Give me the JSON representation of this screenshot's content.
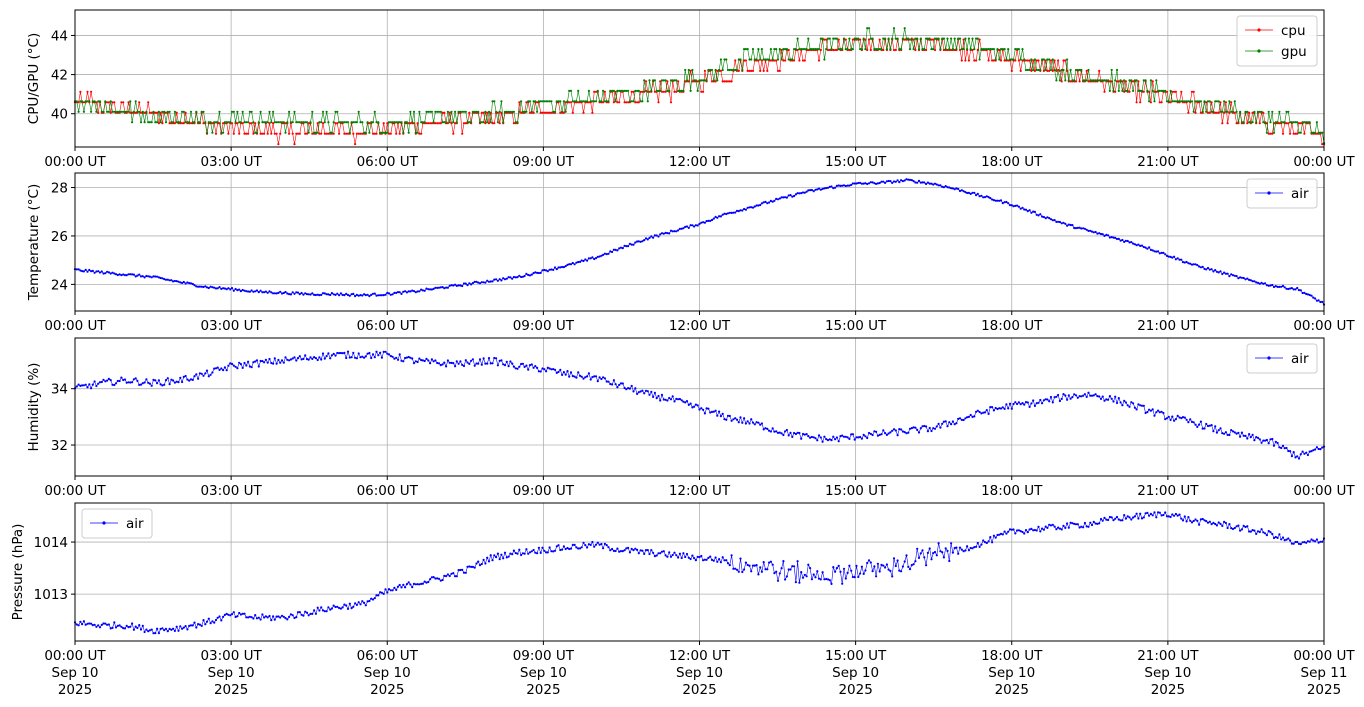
{
  "chart_data": [
    {
      "type": "line",
      "ylabel": "CPU/GPU (°C)",
      "xlim": [
        "00:00",
        "24:00"
      ],
      "ylim": [
        38.3,
        45.3
      ],
      "yticks": [
        40,
        42,
        44
      ],
      "legend": "top-right",
      "grid": true,
      "x_tick_labels": [
        "00:00 UT",
        "03:00 UT",
        "06:00 UT",
        "09:00 UT",
        "12:00 UT",
        "15:00 UT",
        "18:00 UT",
        "21:00 UT",
        "00:00 UT"
      ],
      "series": [
        {
          "name": "cpu",
          "color": "#ff0000",
          "marker": "dot",
          "x_hours": [
            0,
            0.5,
            1.0,
            1.5,
            2.0,
            2.5,
            3.0,
            3.5,
            4.0,
            4.5,
            5.0,
            5.5,
            6.0,
            6.5,
            7.0,
            7.5,
            8.0,
            8.5,
            9.0,
            9.5,
            10.0,
            10.5,
            11.0,
            11.5,
            12.0,
            12.5,
            13.0,
            13.5,
            14.0,
            14.5,
            15.0,
            15.5,
            16.0,
            16.5,
            17.0,
            17.5,
            18.0,
            18.5,
            19.0,
            19.5,
            20.0,
            20.5,
            21.0,
            21.5,
            22.0,
            22.5,
            23.0,
            23.5,
            24.0
          ],
          "values": [
            40.7,
            40.5,
            40.2,
            40.0,
            39.8,
            39.5,
            39.2,
            39.1,
            39.1,
            39.1,
            39.2,
            39.1,
            39.3,
            39.5,
            39.6,
            39.6,
            39.7,
            40.0,
            40.2,
            40.4,
            40.6,
            40.8,
            41.0,
            41.3,
            41.7,
            42.1,
            42.6,
            42.8,
            43.1,
            43.4,
            43.5,
            43.6,
            43.6,
            43.5,
            43.4,
            43.1,
            42.8,
            42.5,
            42.1,
            41.8,
            41.5,
            41.1,
            40.8,
            40.5,
            40.2,
            39.8,
            39.5,
            39.2,
            38.7
          ]
        },
        {
          "name": "gpu",
          "color": "#008000",
          "marker": "dot",
          "x_hours": [
            0,
            0.5,
            1.0,
            1.5,
            2.0,
            2.5,
            3.0,
            3.5,
            4.0,
            4.5,
            5.0,
            5.5,
            6.0,
            6.5,
            7.0,
            7.5,
            8.0,
            8.5,
            9.0,
            9.5,
            10.0,
            10.5,
            11.0,
            11.5,
            12.0,
            12.5,
            13.0,
            13.5,
            14.0,
            14.5,
            15.0,
            15.5,
            16.0,
            16.5,
            17.0,
            17.5,
            18.0,
            18.5,
            19.0,
            19.5,
            20.0,
            20.5,
            21.0,
            21.5,
            22.0,
            22.5,
            23.0,
            23.5,
            24.0
          ],
          "values": [
            40.7,
            40.4,
            40.1,
            39.8,
            39.7,
            39.6,
            39.7,
            39.6,
            39.6,
            39.5,
            39.5,
            39.5,
            39.5,
            39.6,
            39.7,
            39.8,
            39.9,
            40.1,
            40.4,
            40.6,
            40.7,
            40.9,
            41.1,
            41.5,
            41.8,
            42.3,
            42.8,
            42.9,
            43.2,
            43.4,
            43.6,
            43.7,
            43.7,
            43.6,
            43.5,
            43.2,
            42.9,
            42.6,
            42.2,
            41.9,
            41.6,
            41.2,
            40.8,
            40.6,
            40.3,
            39.9,
            39.6,
            39.4,
            38.8
          ]
        }
      ]
    },
    {
      "type": "line",
      "ylabel": "Temperature (°C)",
      "xlim": [
        "00:00",
        "24:00"
      ],
      "ylim": [
        22.9,
        28.6
      ],
      "yticks": [
        24,
        26,
        28
      ],
      "legend": "top-right",
      "grid": true,
      "x_tick_labels": [
        "00:00 UT",
        "03:00 UT",
        "06:00 UT",
        "09:00 UT",
        "12:00 UT",
        "15:00 UT",
        "18:00 UT",
        "21:00 UT",
        "00:00 UT"
      ],
      "series": [
        {
          "name": "air",
          "color": "#0000ff",
          "marker": "dot",
          "x_hours": [
            0,
            0.5,
            1.0,
            1.5,
            2.0,
            2.5,
            3.0,
            3.5,
            4.0,
            4.5,
            5.0,
            5.5,
            6.0,
            6.5,
            7.0,
            7.5,
            8.0,
            8.5,
            9.0,
            9.5,
            10.0,
            10.5,
            11.0,
            11.5,
            12.0,
            12.5,
            13.0,
            13.5,
            14.0,
            14.5,
            15.0,
            15.5,
            16.0,
            16.5,
            17.0,
            17.5,
            18.0,
            18.5,
            19.0,
            19.5,
            20.0,
            20.5,
            21.0,
            21.5,
            22.0,
            22.5,
            23.0,
            23.5,
            24.0
          ],
          "values": [
            24.6,
            24.5,
            24.4,
            24.3,
            24.1,
            23.9,
            23.8,
            23.7,
            23.65,
            23.6,
            23.6,
            23.55,
            23.6,
            23.7,
            23.85,
            24.0,
            24.15,
            24.3,
            24.55,
            24.8,
            25.1,
            25.5,
            25.9,
            26.2,
            26.5,
            26.9,
            27.2,
            27.5,
            27.8,
            28.0,
            28.15,
            28.2,
            28.3,
            28.15,
            27.9,
            27.6,
            27.3,
            26.9,
            26.5,
            26.2,
            25.9,
            25.6,
            25.2,
            24.8,
            24.5,
            24.2,
            23.95,
            23.8,
            23.2
          ]
        }
      ]
    },
    {
      "type": "line",
      "ylabel": "Humidity (%)",
      "xlim": [
        "00:00",
        "24:00"
      ],
      "ylim": [
        30.9,
        35.8
      ],
      "yticks": [
        32,
        34
      ],
      "legend": "top-right",
      "grid": true,
      "x_tick_labels": [
        "00:00 UT",
        "03:00 UT",
        "06:00 UT",
        "09:00 UT",
        "12:00 UT",
        "15:00 UT",
        "18:00 UT",
        "21:00 UT",
        "00:00 UT"
      ],
      "series": [
        {
          "name": "air",
          "color": "#0000ff",
          "marker": "dot",
          "x_hours": [
            0,
            0.5,
            1.0,
            1.5,
            2.0,
            2.5,
            3.0,
            3.5,
            4.0,
            4.5,
            5.0,
            5.5,
            6.0,
            6.5,
            7.0,
            7.5,
            8.0,
            8.5,
            9.0,
            9.5,
            10.0,
            10.5,
            11.0,
            11.5,
            12.0,
            12.5,
            13.0,
            13.5,
            14.0,
            14.5,
            15.0,
            15.5,
            16.0,
            16.5,
            17.0,
            17.5,
            18.0,
            18.5,
            19.0,
            19.5,
            20.0,
            20.5,
            21.0,
            21.5,
            22.0,
            22.5,
            23.0,
            23.5,
            24.0
          ],
          "values": [
            34.0,
            34.2,
            34.3,
            34.2,
            34.3,
            34.5,
            34.8,
            34.9,
            35.0,
            35.1,
            35.2,
            35.2,
            35.2,
            35.0,
            34.9,
            34.9,
            35.0,
            34.8,
            34.7,
            34.5,
            34.4,
            34.1,
            33.8,
            33.6,
            33.3,
            33.0,
            32.8,
            32.5,
            32.3,
            32.2,
            32.3,
            32.4,
            32.5,
            32.6,
            32.9,
            33.2,
            33.4,
            33.5,
            33.7,
            33.8,
            33.6,
            33.3,
            33.0,
            32.8,
            32.5,
            32.3,
            32.1,
            31.6,
            31.9
          ]
        }
      ]
    },
    {
      "type": "line",
      "ylabel": "Pressure (hPa)",
      "xlim": [
        "2025-09-10 00:00",
        "2025-09-11 00:00"
      ],
      "ylim": [
        1012.1,
        1014.75
      ],
      "yticks": [
        1013,
        1014
      ],
      "legend": "top-left",
      "grid": true,
      "x_tick_labels": [
        [
          "00:00 UT",
          "Sep 10",
          "2025"
        ],
        [
          "03:00 UT",
          "Sep 10",
          "2025"
        ],
        [
          "06:00 UT",
          "Sep 10",
          "2025"
        ],
        [
          "09:00 UT",
          "Sep 10",
          "2025"
        ],
        [
          "12:00 UT",
          "Sep 10",
          "2025"
        ],
        [
          "15:00 UT",
          "Sep 10",
          "2025"
        ],
        [
          "18:00 UT",
          "Sep 10",
          "2025"
        ],
        [
          "21:00 UT",
          "Sep 10",
          "2025"
        ],
        [
          "00:00 UT",
          "Sep 11",
          "2025"
        ]
      ],
      "series": [
        {
          "name": "air",
          "color": "#0000ff",
          "marker": "dot",
          "x_hours": [
            0,
            0.5,
            1.0,
            1.5,
            2.0,
            2.5,
            3.0,
            3.5,
            4.0,
            4.5,
            5.0,
            5.5,
            6.0,
            6.5,
            7.0,
            7.5,
            8.0,
            8.5,
            9.0,
            9.5,
            10.0,
            10.5,
            11.0,
            11.5,
            12.0,
            12.5,
            13.0,
            13.5,
            14.0,
            14.5,
            15.0,
            15.5,
            16.0,
            16.5,
            17.0,
            17.5,
            18.0,
            18.5,
            19.0,
            19.5,
            20.0,
            20.5,
            21.0,
            21.5,
            22.0,
            22.5,
            23.0,
            23.5,
            24.0
          ],
          "values": [
            1012.45,
            1012.4,
            1012.4,
            1012.3,
            1012.35,
            1012.45,
            1012.6,
            1012.55,
            1012.55,
            1012.65,
            1012.75,
            1012.8,
            1013.05,
            1013.2,
            1013.3,
            1013.45,
            1013.7,
            1013.8,
            1013.85,
            1013.9,
            1013.95,
            1013.85,
            1013.8,
            1013.75,
            1013.7,
            1013.65,
            1013.55,
            1013.45,
            1013.4,
            1013.35,
            1013.45,
            1013.5,
            1013.6,
            1013.75,
            1013.85,
            1014.0,
            1014.2,
            1014.25,
            1014.3,
            1014.35,
            1014.45,
            1014.5,
            1014.55,
            1014.4,
            1014.35,
            1014.25,
            1014.15,
            1013.95,
            1014.05
          ]
        }
      ]
    }
  ]
}
